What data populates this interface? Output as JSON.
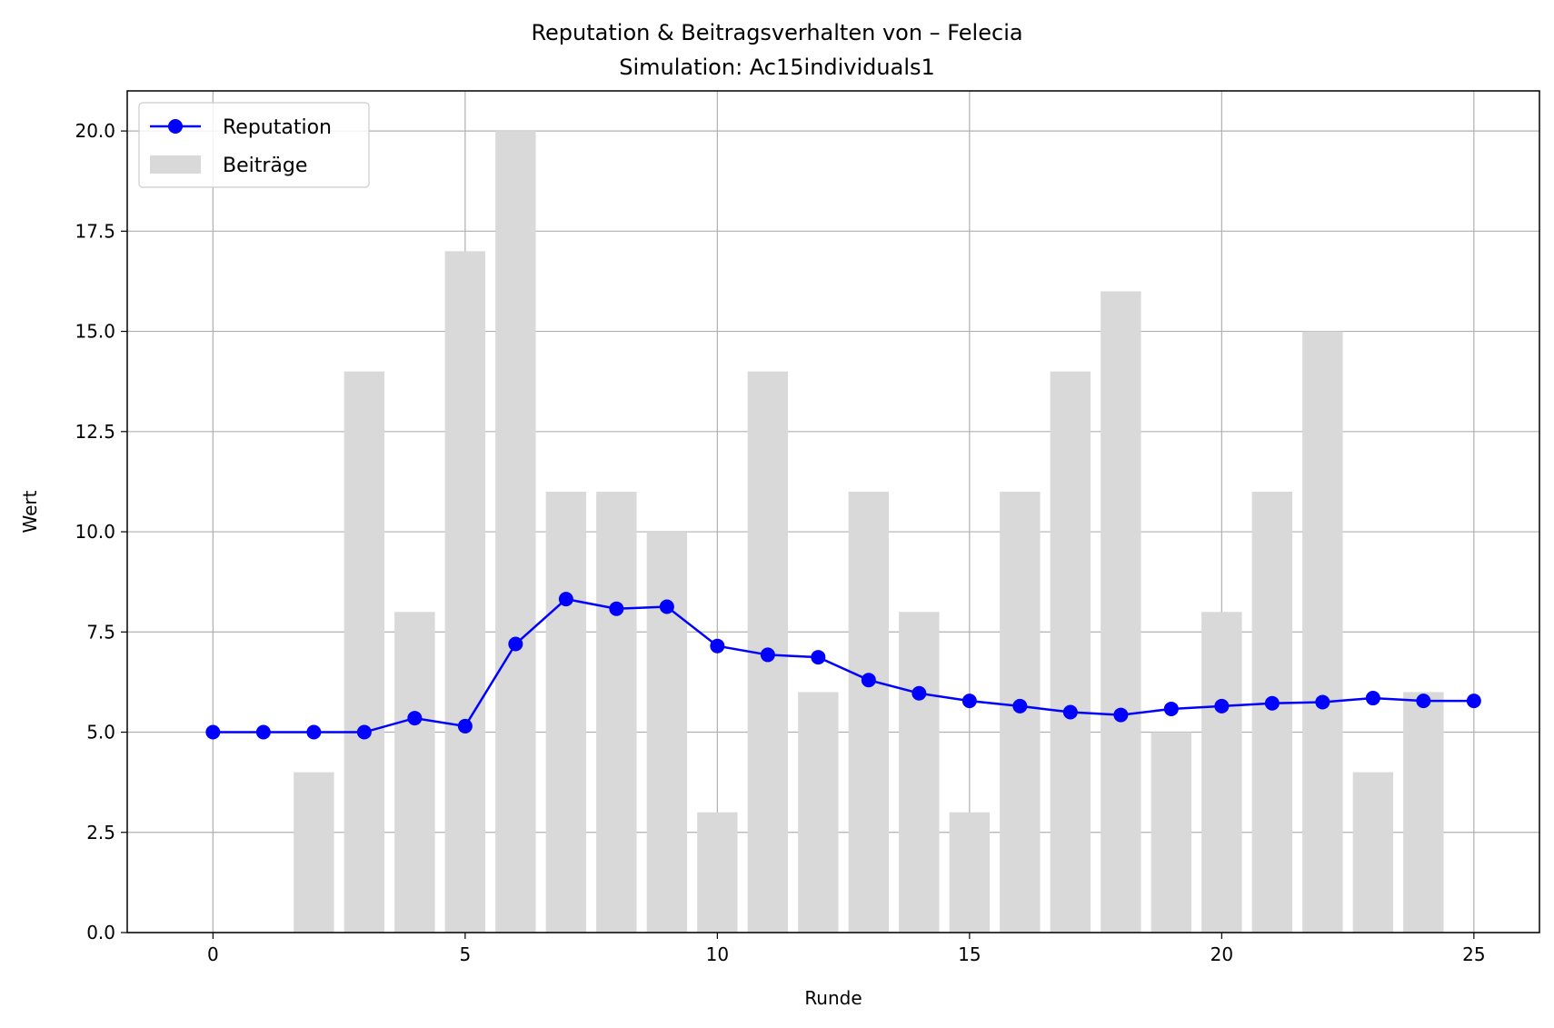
{
  "chart_data": {
    "type": "bar+line",
    "title": "Reputation & Beitragsverhalten von – Felecia",
    "subtitle": "Simulation: Ac15individuals1",
    "xlabel": "Runde",
    "ylabel": "Wert",
    "xlim": [
      -1.7,
      26.3
    ],
    "ylim": [
      0,
      21
    ],
    "xticks": [
      0,
      5,
      10,
      15,
      20,
      25
    ],
    "xtick_labels": [
      "0",
      "5",
      "10",
      "15",
      "20",
      "25"
    ],
    "yticks": [
      0,
      2.5,
      5,
      7.5,
      10,
      12.5,
      15,
      17.5,
      20
    ],
    "ytick_labels": [
      "0.0",
      "2.5",
      "5.0",
      "7.5",
      "10.0",
      "12.5",
      "15.0",
      "17.5",
      "20.0"
    ],
    "grid": true,
    "legend_position": "top-left",
    "x": [
      0,
      1,
      2,
      3,
      4,
      5,
      6,
      7,
      8,
      9,
      10,
      11,
      12,
      13,
      14,
      15,
      16,
      17,
      18,
      19,
      20,
      21,
      22,
      23,
      24,
      25
    ],
    "series": [
      {
        "name": "Reputation",
        "kind": "line",
        "marker": "circle",
        "color": "#0000ff",
        "values": [
          5.0,
          5.0,
          5.0,
          5.0,
          5.35,
          5.15,
          7.2,
          8.32,
          8.08,
          8.13,
          7.15,
          6.93,
          6.87,
          6.3,
          5.97,
          5.78,
          5.65,
          5.5,
          5.43,
          5.58,
          5.65,
          5.72,
          5.75,
          5.85,
          5.78,
          5.78
        ]
      },
      {
        "name": "Beiträge",
        "kind": "bar",
        "color": "#d9d9d9",
        "values": [
          0,
          0,
          4,
          14,
          8,
          17,
          20,
          11,
          11,
          10,
          3,
          14,
          6,
          11,
          8,
          3,
          11,
          14,
          16,
          5,
          8,
          11,
          15,
          4,
          6,
          0
        ]
      }
    ]
  }
}
